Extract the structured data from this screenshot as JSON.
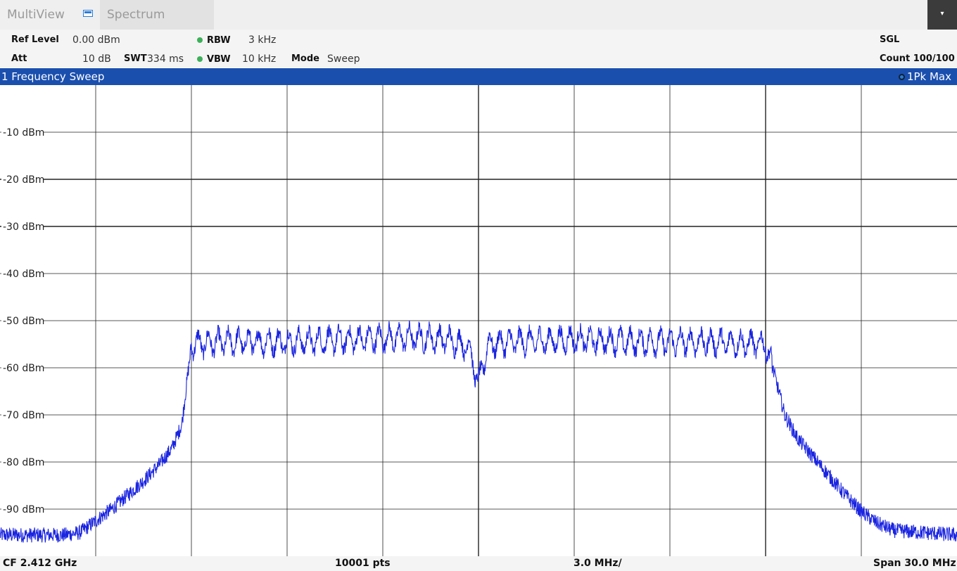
{
  "tabs": {
    "multiview": "MultiView",
    "spectrum": "Spectrum",
    "menu_glyph": "▾"
  },
  "settings": {
    "ref_level_label": "Ref Level",
    "ref_level_value": "0.00 dBm",
    "att_label": "Att",
    "att_value": "10 dB",
    "swt_label": "SWT",
    "swt_value": "334 ms",
    "rbw_label": "RBW",
    "rbw_value": "3 kHz",
    "vbw_label": "VBW",
    "vbw_value": "10 kHz",
    "mode_label": "Mode",
    "mode_value": "Sweep",
    "sgl": "SGL",
    "count": "Count 100/100",
    "indicator_color": "#3cb05a"
  },
  "window": {
    "title": "1 Frequency Sweep",
    "trace": "1Pk Max",
    "title_color": "#1a4fae"
  },
  "footer": {
    "cf": "CF 2.412 GHz",
    "points": "10001 pts",
    "div": "3.0 MHz/",
    "span": "Span 30.0 MHz"
  },
  "chart_data": {
    "type": "line",
    "y_labels": [
      "-10 dBm",
      "-20 dBm",
      "-30 dBm",
      "-40 dBm",
      "-50 dBm",
      "-60 dBm",
      "-70 dBm",
      "-80 dBm",
      "-90 dBm"
    ],
    "ylim": [
      -100,
      0
    ],
    "xlim": [
      2397,
      2427
    ],
    "x_unit": "MHz",
    "grid": true,
    "trace_color": "#1a24e0",
    "series": [
      {
        "x": [
          2397.0,
          2399.0,
          2399.5,
          2400.0,
          2400.5,
          2401.0,
          2401.5,
          2402.0,
          2402.4,
          2402.7,
          2403.0,
          2404.0,
          2406.0,
          2408.0,
          2410.0,
          2411.0,
          2411.7,
          2412.0,
          2412.3,
          2413.0,
          2415.0,
          2417.0,
          2419.0,
          2421.0,
          2421.3,
          2421.6,
          2422.0,
          2422.5,
          2423.0,
          2423.5,
          2424.0,
          2424.5,
          2425.0,
          2426.0,
          2427.0
        ],
        "y": [
          -95.5,
          -95.5,
          -95.0,
          -92.5,
          -90.0,
          -87.0,
          -84.0,
          -80.5,
          -77.0,
          -72.0,
          -55.0,
          -54.5,
          -54.5,
          -54.0,
          -53.5,
          -54.0,
          -55.5,
          -63.5,
          -55.0,
          -54.5,
          -54.0,
          -54.5,
          -54.5,
          -55.0,
          -62.0,
          -70.0,
          -75.0,
          -79.0,
          -83.0,
          -87.0,
          -90.5,
          -93.0,
          -94.5,
          -95.0,
          -95.5
        ]
      }
    ]
  }
}
